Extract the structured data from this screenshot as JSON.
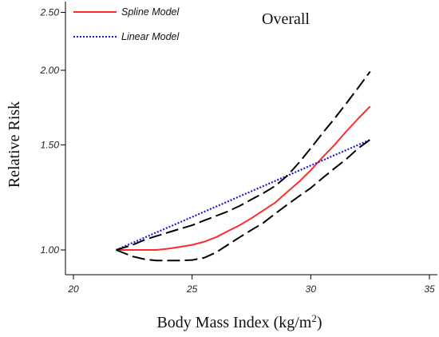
{
  "chart_data": {
    "type": "line",
    "title": "Overall",
    "xlabel": "Body Mass Index (kg/m",
    "xlabel_sup": "2",
    "xlabel_suffix": ")",
    "ylabel": "Relative Risk",
    "xlim": [
      20,
      35
    ],
    "ylim": [
      0.95,
      2.6
    ],
    "y_scale": "log",
    "x_ticks": [
      20,
      25,
      30,
      35
    ],
    "x_tick_labels": [
      "20",
      "25",
      "30",
      "35"
    ],
    "y_ticks": [
      1.0,
      1.5,
      2.0,
      2.5
    ],
    "y_tick_labels": [
      "1.00",
      "1.50",
      "2.00",
      "2.50"
    ],
    "grid": false,
    "legend_position": "top-left",
    "series": [
      {
        "name": "Spline Model",
        "color": "#ff2a2a",
        "style": "solid",
        "x": [
          21.8,
          22.5,
          23.0,
          23.5,
          24.0,
          24.5,
          25.0,
          25.5,
          26.0,
          26.5,
          27.0,
          27.5,
          28.0,
          28.5,
          29.0,
          29.5,
          30.0,
          30.5,
          31.0,
          31.5,
          32.0,
          32.5
        ],
        "y": [
          1.0,
          1.0,
          1.0,
          1.0,
          1.005,
          1.012,
          1.02,
          1.032,
          1.05,
          1.075,
          1.1,
          1.13,
          1.165,
          1.2,
          1.25,
          1.3,
          1.36,
          1.43,
          1.5,
          1.58,
          1.66,
          1.74
        ]
      },
      {
        "name": "Linear Model",
        "color": "#1a1ad6",
        "style": "dotted",
        "x": [
          21.8,
          32.5
        ],
        "y": [
          1.0,
          1.53
        ]
      },
      {
        "name": "",
        "color": "#000000",
        "style": "dashed",
        "x": [
          21.8,
          22.5,
          23.0,
          23.5,
          24.0,
          24.5,
          25.0,
          25.5,
          26.0,
          26.5,
          27.0,
          27.5,
          28.0,
          28.5,
          29.0,
          29.5,
          30.0,
          30.5,
          31.0,
          31.5,
          32.0,
          32.5
        ],
        "y": [
          1.0,
          1.02,
          1.04,
          1.055,
          1.07,
          1.085,
          1.1,
          1.12,
          1.14,
          1.16,
          1.185,
          1.215,
          1.245,
          1.28,
          1.33,
          1.4,
          1.48,
          1.57,
          1.66,
          1.76,
          1.87,
          1.99
        ]
      },
      {
        "name": "",
        "color": "#000000",
        "style": "dashed",
        "x": [
          21.8,
          22.5,
          23.0,
          23.5,
          24.0,
          24.5,
          25.0,
          25.5,
          26.0,
          26.5,
          27.0,
          27.5,
          28.0,
          28.5,
          29.0,
          29.5,
          30.0,
          30.5,
          31.0,
          31.5,
          32.0,
          32.5
        ],
        "y": [
          1.0,
          0.975,
          0.965,
          0.96,
          0.96,
          0.96,
          0.962,
          0.97,
          0.99,
          1.02,
          1.05,
          1.08,
          1.11,
          1.15,
          1.19,
          1.23,
          1.27,
          1.32,
          1.37,
          1.42,
          1.48,
          1.53
        ]
      }
    ]
  }
}
